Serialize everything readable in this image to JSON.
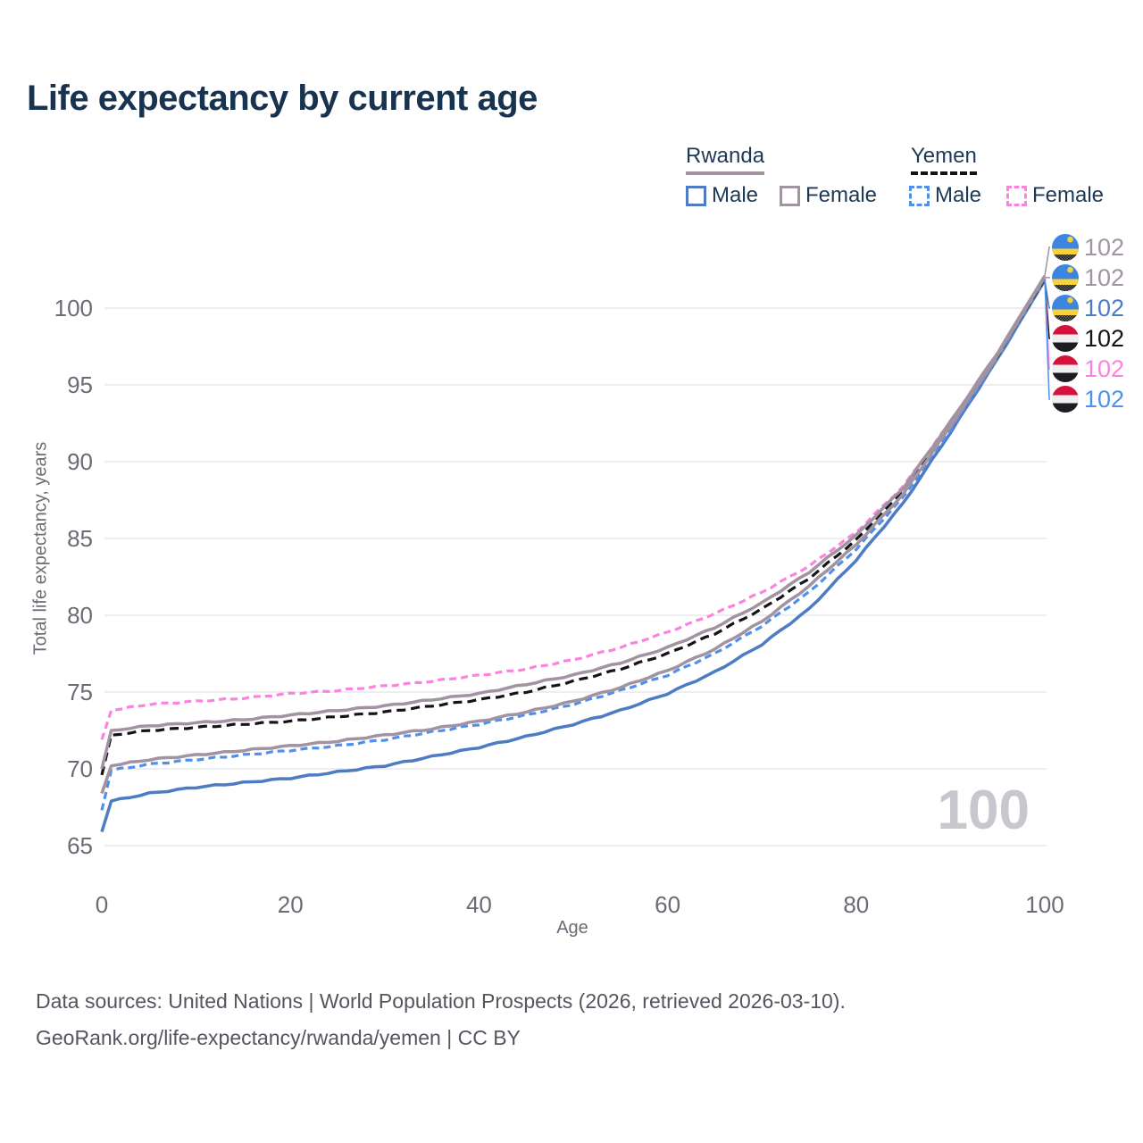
{
  "title": "Life expectancy by current age",
  "watermark": "100",
  "legend": {
    "groups": [
      {
        "name": "Rwanda",
        "line_style": "solid",
        "line_color": "#a193a1",
        "items": [
          {
            "label": "Male",
            "color": "#4d7cc3",
            "dashed": false
          },
          {
            "label": "Female",
            "color": "#a193a1",
            "dashed": false
          }
        ]
      },
      {
        "name": "Yemen",
        "line_style": "dashed",
        "line_color": "#141414",
        "items": [
          {
            "label": "Male",
            "color": "#4f90ec",
            "dashed": true
          },
          {
            "label": "Female",
            "color": "#fb83e0",
            "dashed": true
          }
        ]
      }
    ]
  },
  "footer": {
    "line1": "Data sources: United Nations | World Population Prospects (2026, retrieved 2026-03-10).",
    "line2": "GeoRank.org/life-expectancy/rwanda/yemen | CC BY"
  },
  "chart_data": {
    "type": "line",
    "title": "Life expectancy by current age",
    "xlabel": "Age",
    "ylabel": "Total life expectancy, years",
    "xlim": [
      0,
      100
    ],
    "ylim": [
      65,
      103
    ],
    "x_ticks": [
      0,
      20,
      40,
      60,
      80,
      100
    ],
    "y_ticks": [
      65,
      70,
      75,
      80,
      85,
      90,
      95,
      100
    ],
    "grid": "horizontal",
    "legend_position": "top-right",
    "ages": [
      0,
      1,
      5,
      10,
      15,
      20,
      25,
      30,
      35,
      40,
      45,
      50,
      55,
      60,
      65,
      70,
      75,
      80,
      85,
      90,
      95,
      100
    ],
    "series": [
      {
        "name": "Rwanda Female",
        "country": "Rwanda",
        "sex": "Female",
        "color": "#a193a1",
        "dash": "solid",
        "flag": "rwanda",
        "end_label": "102",
        "values": [
          70.0,
          72.5,
          72.8,
          73.0,
          73.2,
          73.5,
          73.8,
          74.1,
          74.5,
          74.9,
          75.5,
          76.1,
          76.9,
          77.9,
          79.2,
          80.8,
          82.8,
          85.2,
          88.3,
          92.6,
          97.1,
          102.1
        ]
      },
      {
        "name": "Rwanda Both sexes",
        "country": "Rwanda",
        "sex": "Both",
        "color": "#a193a1",
        "dash": "solid",
        "flag": "rwanda",
        "end_label": "102",
        "values": [
          68.4,
          70.2,
          70.6,
          70.9,
          71.2,
          71.5,
          71.8,
          72.2,
          72.6,
          73.1,
          73.7,
          74.4,
          75.3,
          76.4,
          77.8,
          79.6,
          81.9,
          84.6,
          87.9,
          92.3,
          96.9,
          102.0
        ]
      },
      {
        "name": "Rwanda Male",
        "country": "Rwanda",
        "sex": "Male",
        "color": "#4d7cc3",
        "dash": "solid",
        "flag": "rwanda",
        "end_label": "102",
        "values": [
          65.9,
          67.9,
          68.4,
          68.8,
          69.1,
          69.4,
          69.8,
          70.2,
          70.8,
          71.4,
          72.1,
          72.9,
          73.8,
          74.9,
          76.3,
          78.1,
          80.4,
          83.6,
          87.3,
          91.9,
          96.7,
          101.8
        ]
      },
      {
        "name": "Yemen Both sexes",
        "country": "Yemen",
        "sex": "Both",
        "color": "#141414",
        "dash": "dashed",
        "flag": "yemen",
        "end_label": "102",
        "values": [
          69.6,
          72.2,
          72.5,
          72.7,
          72.9,
          73.1,
          73.4,
          73.7,
          74.1,
          74.5,
          75.0,
          75.7,
          76.5,
          77.5,
          78.8,
          80.4,
          82.4,
          84.9,
          88.1,
          92.4,
          96.9,
          101.9
        ]
      },
      {
        "name": "Yemen Female",
        "country": "Yemen",
        "sex": "Female",
        "color": "#fb83e0",
        "dash": "dashed",
        "flag": "yemen",
        "end_label": "102",
        "values": [
          71.9,
          73.8,
          74.2,
          74.4,
          74.6,
          74.9,
          75.1,
          75.4,
          75.7,
          76.1,
          76.5,
          77.1,
          77.9,
          78.9,
          80.1,
          81.5,
          83.2,
          85.4,
          88.4,
          92.6,
          97.0,
          102.0
        ]
      },
      {
        "name": "Yemen Male",
        "country": "Yemen",
        "sex": "Male",
        "color": "#4f90ec",
        "dash": "dashed",
        "flag": "yemen",
        "end_label": "102",
        "values": [
          67.3,
          69.9,
          70.3,
          70.6,
          70.9,
          71.2,
          71.5,
          71.9,
          72.4,
          72.9,
          73.5,
          74.2,
          75.1,
          76.1,
          77.5,
          79.3,
          81.5,
          84.3,
          87.7,
          92.1,
          96.8,
          101.9
        ]
      }
    ]
  }
}
